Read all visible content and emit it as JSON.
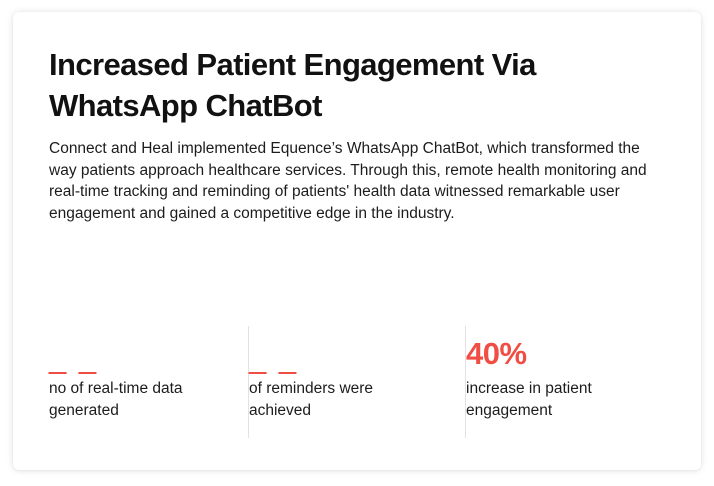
{
  "card": {
    "title": "Increased Patient Engagement Via WhatsApp ChatBot",
    "description": "Connect and Heal implemented Equence’s WhatsApp ChatBot, which transformed the way patients approach healthcare services. Through this, remote health monitoring and real-time tracking and reminding of patients' health data witnessed remarkable user engagement and gained a competitive edge in the industry."
  },
  "stats": [
    {
      "value": "_ _",
      "label": "no of real-time data generated"
    },
    {
      "value": "_ _",
      "label": "of reminders were achieved"
    },
    {
      "value": "40%",
      "label": "increase in patient engagement"
    }
  ],
  "colors": {
    "accent": "#f04e45",
    "text": "#1c1c1c",
    "divider": "#e2e2e2"
  }
}
